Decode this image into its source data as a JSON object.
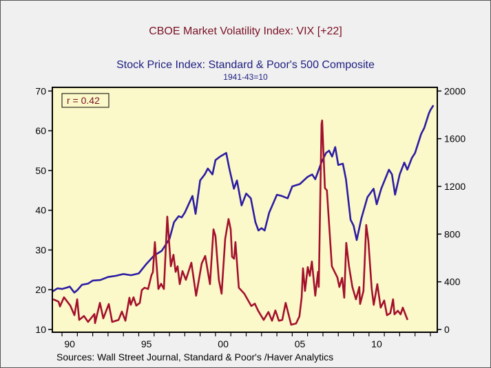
{
  "chart_data": {
    "type": "line",
    "title": "CBOE Market Volatility Index: VIX [+22]",
    "title2": "Stock Price Index: Standard & Poor's 500 Composite",
    "subtitle": "1941-43=10",
    "source": "Sources:  Wall Street Journal, Standard & Poor's /Haver Analytics",
    "annotation": "r = 0.42",
    "grid": false,
    "xlim": [
      1989.37,
      2014.45
    ],
    "x_ticks": [
      "90",
      "95",
      "00",
      "05",
      "10"
    ],
    "x_tick_years": [
      1990,
      1995,
      2000,
      2005,
      2010
    ],
    "y_left": {
      "lim": [
        10,
        70
      ],
      "ticks": [
        10,
        20,
        30,
        40,
        50,
        60,
        70
      ]
    },
    "y_right": {
      "lim": [
        0,
        2000
      ],
      "ticks": [
        0,
        400,
        800,
        1200,
        1600,
        2000
      ]
    },
    "background": "#fbf8c9",
    "series": [
      {
        "name": "CBOE Market Volatility Index: VIX [+22]",
        "axis": "left",
        "color": "#a3102c",
        "x": [
          1989.42,
          1989.78,
          1989.87,
          1990.13,
          1990.54,
          1990.81,
          1990.99,
          1991.12,
          1991.43,
          1991.7,
          1992.11,
          1992.15,
          1992.47,
          1992.69,
          1993.05,
          1993.27,
          1993.68,
          1993.9,
          1994.13,
          1994.39,
          1994.48,
          1994.66,
          1994.84,
          1995.07,
          1995.2,
          1995.38,
          1995.61,
          1995.83,
          1995.92,
          1996.05,
          1996.28,
          1996.46,
          1996.64,
          1996.86,
          1997.09,
          1997.26,
          1997.4,
          1997.53,
          1997.67,
          1997.85,
          1998.07,
          1998.43,
          1998.74,
          1999.1,
          1999.33,
          1999.64,
          1999.87,
          2000.0,
          2000.22,
          2000.4,
          2000.63,
          2000.85,
          2000.99,
          2001.08,
          2001.21,
          2001.3,
          2001.52,
          2001.88,
          2002.33,
          2002.56,
          2002.78,
          2003.14,
          2003.45,
          2003.68,
          2003.9,
          2004.13,
          2004.35,
          2004.57,
          2004.93,
          2005.25,
          2005.47,
          2005.61,
          2005.7,
          2005.83,
          2006.01,
          2006.14,
          2006.28,
          2006.5,
          2006.68,
          2006.73,
          2006.91,
          2006.95,
          2007.13,
          2007.26,
          2007.58,
          2007.94,
          2008.07,
          2008.25,
          2008.39,
          2008.52,
          2008.7,
          2008.92,
          2009.15,
          2009.37,
          2009.42,
          2009.64,
          2009.82,
          2009.96,
          2010.18,
          2010.31,
          2010.54,
          2010.76,
          2010.99,
          2011.17,
          2011.39,
          2011.57,
          2011.66,
          2011.88,
          2012.06,
          2012.2,
          2012.42,
          2012.51
        ],
        "values": [
          17.6,
          17,
          15.8,
          18.1,
          16,
          13.6,
          17.6,
          12.4,
          13.4,
          11.9,
          13.9,
          11.6,
          16.7,
          12.8,
          16.4,
          11.9,
          12.4,
          14.5,
          12.2,
          18,
          16.2,
          18.1,
          16,
          16.7,
          19.9,
          20.5,
          20.2,
          23.7,
          24.4,
          32,
          20.2,
          21.5,
          20.2,
          38.4,
          25.9,
          28.8,
          24.5,
          25.9,
          21.4,
          24.7,
          22.5,
          26.8,
          18.5,
          26.6,
          28.5,
          21.4,
          35.2,
          33.5,
          22.5,
          19,
          32.8,
          37.8,
          35.2,
          28.3,
          27.8,
          32,
          20.5,
          19,
          15.9,
          16.5,
          14.7,
          12.4,
          14.4,
          12.2,
          14.8,
          12.2,
          12.4,
          16.7,
          11.2,
          11.5,
          13.3,
          18,
          25.4,
          19.7,
          25.7,
          23.5,
          27.1,
          18.5,
          24.5,
          20.7,
          61.7,
          62.6,
          45.6,
          45,
          25.9,
          23.1,
          20.7,
          23,
          18,
          31.8,
          25.9,
          20.7,
          17.6,
          20.7,
          16.4,
          19.7,
          36.3,
          32.3,
          20.2,
          16.2,
          21.4,
          15.5,
          17.3,
          13.6,
          14.1,
          17.6,
          13.8,
          14.7,
          13.8,
          15.5,
          13.3,
          12.4
        ]
      },
      {
        "name": "Stock Price Index: Standard & Poor's 500 Composite",
        "axis": "right",
        "color": "#2b1ca3",
        "x": [
          1989.4,
          1989.7,
          1990.0,
          1990.3,
          1990.5,
          1990.8,
          1991.0,
          1991.3,
          1991.7,
          1992.0,
          1992.5,
          1993.0,
          1993.5,
          1994.0,
          1994.5,
          1995.0,
          1995.5,
          1996.0,
          1996.5,
          1996.7,
          1997.0,
          1997.3,
          1997.6,
          1997.8,
          1998.0,
          1998.5,
          1998.7,
          1999.0,
          1999.3,
          1999.5,
          1999.8,
          2000.0,
          2000.3,
          2000.7,
          2000.9,
          2001.2,
          2001.4,
          2001.7,
          2002.0,
          2002.3,
          2002.6,
          2002.8,
          2003.0,
          2003.2,
          2003.5,
          2004.0,
          2004.3,
          2004.7,
          2005.0,
          2005.5,
          2006.0,
          2006.3,
          2006.5,
          2006.9,
          2007.2,
          2007.4,
          2007.6,
          2007.8,
          2008.0,
          2008.3,
          2008.5,
          2008.8,
          2009.0,
          2009.2,
          2009.5,
          2009.9,
          2010.3,
          2010.5,
          2010.8,
          2011.3,
          2011.5,
          2011.7,
          2012.0,
          2012.3,
          2012.5,
          2012.8,
          2013.0,
          2013.4,
          2013.6,
          2013.9,
          2014.0,
          2014.2
        ],
        "values": [
          320,
          345,
          340,
          350,
          360,
          310,
          330,
          375,
          385,
          410,
          415,
          440,
          450,
          465,
          455,
          470,
          550,
          620,
          660,
          700,
          760,
          900,
          950,
          940,
          980,
          1120,
          970,
          1250,
          1300,
          1350,
          1300,
          1420,
          1450,
          1480,
          1350,
          1180,
          1250,
          1040,
          1140,
          1100,
          900,
          830,
          850,
          830,
          980,
          1130,
          1120,
          1100,
          1200,
          1220,
          1280,
          1300,
          1260,
          1400,
          1480,
          1500,
          1450,
          1530,
          1380,
          1390,
          1260,
          920,
          870,
          750,
          930,
          1110,
          1180,
          1050,
          1180,
          1340,
          1300,
          1130,
          1300,
          1400,
          1340,
          1440,
          1480,
          1640,
          1690,
          1810,
          1840,
          1880
        ]
      }
    ]
  }
}
